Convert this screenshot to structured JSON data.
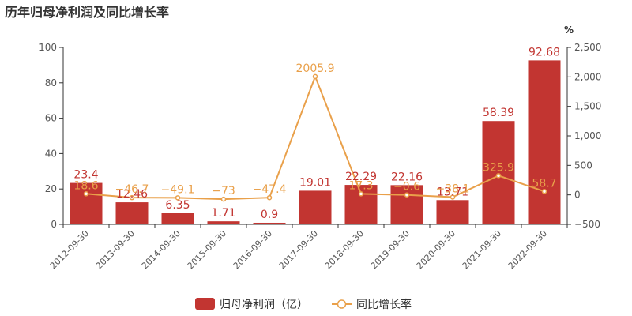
{
  "title": "历年归母净利润及同比增长率",
  "chart_data": {
    "type": "bar",
    "categories": [
      "2012-09-30",
      "2013-09-30",
      "2014-09-30",
      "2015-09-30",
      "2016-09-30",
      "2017-09-30",
      "2018-09-30",
      "2019-09-30",
      "2020-09-30",
      "2021-09-30",
      "2022-09-30"
    ],
    "series": [
      {
        "name": "归母净利润（亿）",
        "type": "bar",
        "axis": "left",
        "values": [
          23.4,
          12.46,
          6.35,
          1.71,
          0.9,
          19.01,
          22.29,
          22.16,
          13.71,
          58.39,
          92.68
        ],
        "labels": [
          "23.4",
          "12.46",
          "6.35",
          "1.71",
          "0.9",
          "19.01",
          "22.29",
          "22.16",
          "13.71",
          "58.39",
          "92.68"
        ],
        "color": "#c23531"
      },
      {
        "name": "同比增长率",
        "type": "line",
        "axis": "right",
        "values": [
          18.6,
          -46.7,
          -49.1,
          -73,
          -47.4,
          2005.9,
          17.3,
          -0.6,
          -38.1,
          325.9,
          58.7
        ],
        "labels": [
          "18.6",
          "−46.7",
          "−49.1",
          "−73",
          "−47.4",
          "2005.9",
          "17.3",
          "−0.6",
          "−38.1",
          "325.9",
          "58.7"
        ],
        "color": "#e9a04a"
      }
    ],
    "y_left": {
      "ylim": [
        0,
        100
      ],
      "ticks": [
        "0",
        "20",
        "40",
        "60",
        "80",
        "100"
      ]
    },
    "y_right": {
      "ylim": [
        -500,
        2500
      ],
      "ticks": [
        "−500",
        "0",
        "500",
        "1,000",
        "1,500",
        "2,000",
        "2,500"
      ],
      "unit": "%"
    },
    "grid": false,
    "legend": "bottom"
  }
}
